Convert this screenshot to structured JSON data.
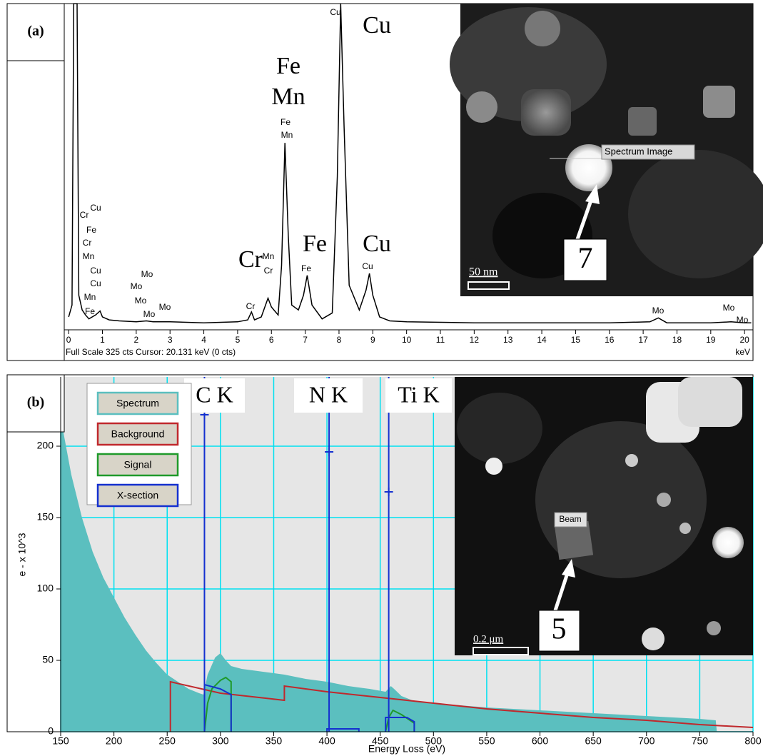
{
  "chart_data": [
    {
      "type": "line",
      "panel_label": "(a)",
      "footer": "Full Scale 325 cts  Cursor: 20.131 keV (0 cts)",
      "x_unit_label": "keV",
      "xlim": [
        -0.13,
        20.25
      ],
      "xticks": [
        0,
        1,
        2,
        3,
        4,
        5,
        6,
        7,
        8,
        9,
        10,
        11,
        12,
        13,
        14,
        15,
        16,
        17,
        18,
        19,
        20
      ],
      "ylim": [
        0,
        325
      ],
      "color": "#000000",
      "x": [
        0,
        0.1,
        0.15,
        0.2,
        0.25,
        0.3,
        0.4,
        0.5,
        0.6,
        0.7,
        0.8,
        0.93,
        1.0,
        1.2,
        1.5,
        2.0,
        2.3,
        2.5,
        3.0,
        4.0,
        5.0,
        5.3,
        5.41,
        5.5,
        5.7,
        5.9,
        6.0,
        6.2,
        6.3,
        6.4,
        6.5,
        6.6,
        6.8,
        6.95,
        7.06,
        7.2,
        7.5,
        7.8,
        7.95,
        8.05,
        8.15,
        8.3,
        8.6,
        8.8,
        8.9,
        9.0,
        9.2,
        9.5,
        10,
        12,
        14,
        16,
        17.2,
        17.45,
        17.7,
        19,
        19.6,
        20,
        20.2
      ],
      "values": [
        8,
        20,
        325,
        325,
        325,
        30,
        15,
        10,
        6,
        8,
        10,
        14,
        8,
        5,
        4,
        3,
        4,
        3,
        3,
        2,
        3,
        5,
        13,
        5,
        8,
        27,
        18,
        10,
        60,
        184,
        90,
        20,
        15,
        30,
        50,
        20,
        6,
        12,
        150,
        325,
        200,
        40,
        15,
        35,
        52,
        30,
        8,
        4,
        3,
        2,
        2,
        2,
        3,
        7,
        2,
        2,
        3,
        2,
        2
      ],
      "peak_labels": [
        "Cu",
        "Fe",
        "Mn",
        "Cr",
        "Cu",
        "Fe",
        "Cr",
        "Mn",
        "Cu",
        "Cu",
        "Mn",
        "Fe",
        "Mo",
        "Mo",
        "Mo",
        "Mo",
        "Mo",
        "Cr",
        "Mn",
        "Cr",
        "Fe",
        "Cu",
        "Mo",
        "Mo",
        "Mo"
      ],
      "element_labels": [
        "Cu",
        "Fe",
        "Mn",
        "Cr",
        "Fe",
        "Cu"
      ],
      "inset": {
        "caption": "Spectrum Image",
        "particle": "7",
        "scale_bar": "50 nm"
      }
    },
    {
      "type": "area",
      "panel_label": "(b)",
      "x_label": "Energy Loss (eV)",
      "y_label": "e - x 10^3",
      "xlim": [
        150,
        800
      ],
      "xticks": [
        150,
        200,
        250,
        300,
        350,
        400,
        450,
        500,
        550,
        600,
        650,
        700,
        750,
        800
      ],
      "ylim": [
        0,
        248.5
      ],
      "yticks": [
        0,
        50,
        100,
        150,
        200
      ],
      "grid": true,
      "grid_color": "#00e0f0",
      "series": [
        {
          "name": "Spectrum",
          "color": "#5bbfbf",
          "style": "area",
          "x": [
            150,
            160,
            170,
            180,
            190,
            200,
            210,
            220,
            230,
            240,
            250,
            260,
            270,
            280,
            284,
            288,
            295,
            300,
            305,
            310,
            320,
            340,
            360,
            380,
            400,
            420,
            440,
            455,
            460,
            463,
            470,
            480,
            500,
            550,
            600,
            650,
            700,
            750,
            765,
            766
          ],
          "values": [
            220,
            180,
            150,
            126,
            108,
            94,
            80,
            68,
            57,
            48,
            40,
            35,
            30,
            27,
            26,
            40,
            52,
            55,
            50,
            46,
            44,
            42,
            40,
            37,
            35,
            32,
            30,
            28,
            32,
            30,
            25,
            22,
            20,
            17,
            15,
            13,
            11,
            9,
            8,
            0
          ]
        },
        {
          "name": "Background",
          "color": "#c0282c",
          "style": "line",
          "x": [
            253,
            253,
            300,
            360,
            360,
            400,
            450,
            500,
            550,
            600,
            650,
            700,
            750,
            800
          ],
          "values": [
            0,
            35,
            27,
            22,
            32,
            28,
            24,
            20,
            16,
            13,
            10,
            8,
            5,
            3
          ]
        },
        {
          "name": "Signal",
          "color": "#1f9a2a",
          "style": "line",
          "x": [
            285,
            288,
            292,
            300,
            305,
            310,
            310,
            330,
            455,
            458,
            462,
            470,
            478,
            482,
            482
          ],
          "values": [
            0,
            20,
            30,
            36,
            38,
            35,
            0,
            null,
            0,
            10,
            15,
            12,
            8,
            6,
            0
          ]
        },
        {
          "name": "X-section",
          "color": "#1430d0",
          "style": "line",
          "x": [
            285,
            285,
            300,
            310,
            310,
            350,
            400,
            400,
            430,
            430,
            440,
            455,
            455,
            475,
            482,
            482
          ],
          "values": [
            0,
            33,
            30,
            26,
            0,
            null,
            0,
            2,
            2,
            0,
            null,
            0,
            10,
            10,
            7,
            0
          ]
        }
      ],
      "edges": [
        {
          "label": "C K",
          "x": 285,
          "marker": 222
        },
        {
          "label": "N K",
          "x": 402,
          "marker": 196
        },
        {
          "label": "Ti K",
          "x": 458,
          "marker": 168
        }
      ],
      "inset": {
        "caption": "Beam",
        "particle": "5",
        "scale_bar": "0.2 μm"
      }
    }
  ]
}
